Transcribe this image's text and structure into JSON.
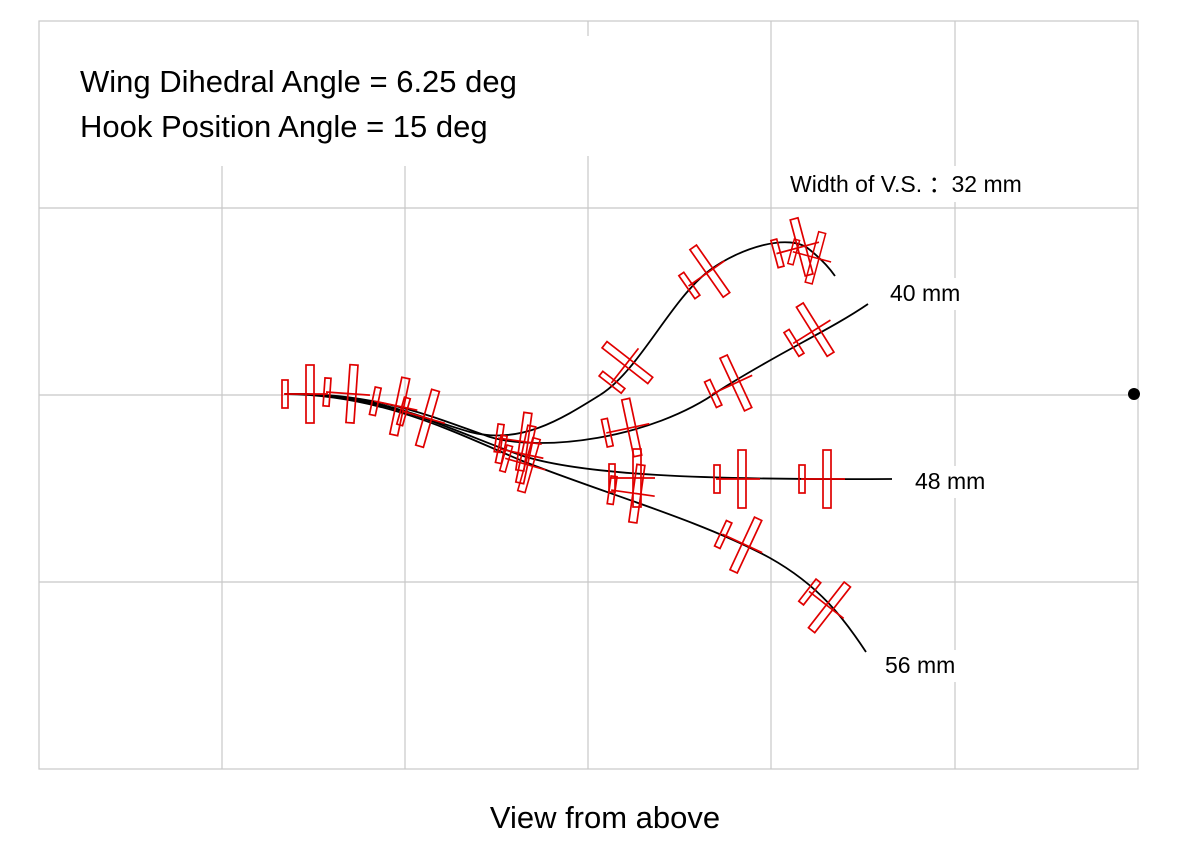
{
  "header": {
    "line1": "Wing Dihedral Angle  = 6.25 deg",
    "line2": "Hook Position Angle  = 15 deg"
  },
  "width_label": "Width of V.S. ：32 mm",
  "trajectories": [
    {
      "id": "32mm",
      "label": ""
    },
    {
      "id": "40mm",
      "label": "40 mm"
    },
    {
      "id": "48mm",
      "label": "48 mm"
    },
    {
      "id": "56mm",
      "label": "56 mm"
    }
  ],
  "caption": "View from above",
  "colors": {
    "grid": "#c8c8c8",
    "trajectory": "#000000",
    "glider": "#e00000",
    "marker": "#000000"
  }
}
